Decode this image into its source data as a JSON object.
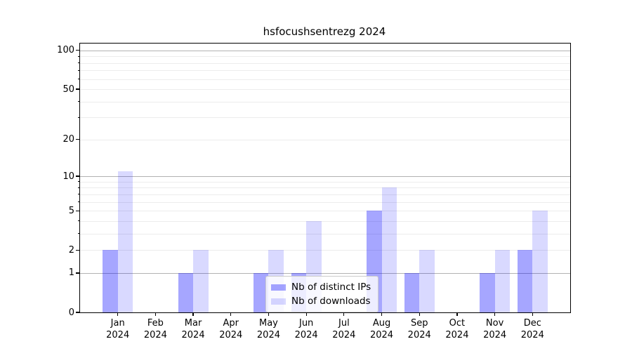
{
  "figure": {
    "background": "#ffffff"
  },
  "chart_data": {
    "type": "bar",
    "title": "hsfocushsentrezg 2024",
    "categories": [
      "Jan",
      "Feb",
      "Mar",
      "Apr",
      "May",
      "Jun",
      "Jul",
      "Aug",
      "Sep",
      "Oct",
      "Nov",
      "Dec"
    ],
    "category_year_line": "2024",
    "series": [
      {
        "name": "Nb of distinct IPs",
        "color_hex": "#a6a6ff",
        "color_rgba": "rgba(0,0,255,0.35)",
        "values": [
          2,
          0,
          1,
          0,
          1,
          1,
          0,
          5,
          1,
          0,
          1,
          2
        ]
      },
      {
        "name": "Nb of downloads",
        "color_hex": "#d9d9ff",
        "color_rgba": "rgba(0,0,255,0.15)",
        "values": [
          11,
          0,
          2,
          0,
          2,
          4,
          0,
          8,
          2,
          0,
          2,
          5
        ]
      }
    ],
    "y_axis": {
      "scale": "log1p",
      "ylim": [
        0,
        113
      ],
      "labeled_ticks": [
        0,
        1,
        2,
        5,
        10,
        20,
        50,
        100
      ],
      "major_grid_ticks": [
        1,
        10,
        100
      ],
      "minor_grid_ticks": [
        2,
        3,
        4,
        5,
        6,
        7,
        8,
        9,
        20,
        30,
        40,
        50,
        60,
        70,
        80,
        90
      ]
    },
    "x_axis": {
      "ylabel": "",
      "xlabel": ""
    },
    "legend": {
      "position": "lower center",
      "entries": [
        "Nb of distinct IPs",
        "Nb of downloads"
      ]
    },
    "grid": true
  },
  "colors": {
    "major_grid": "#b2b2b2",
    "minor_grid": "#ececec",
    "spine": "#000000",
    "text": "#000000",
    "legend_border": "#cccccc"
  }
}
